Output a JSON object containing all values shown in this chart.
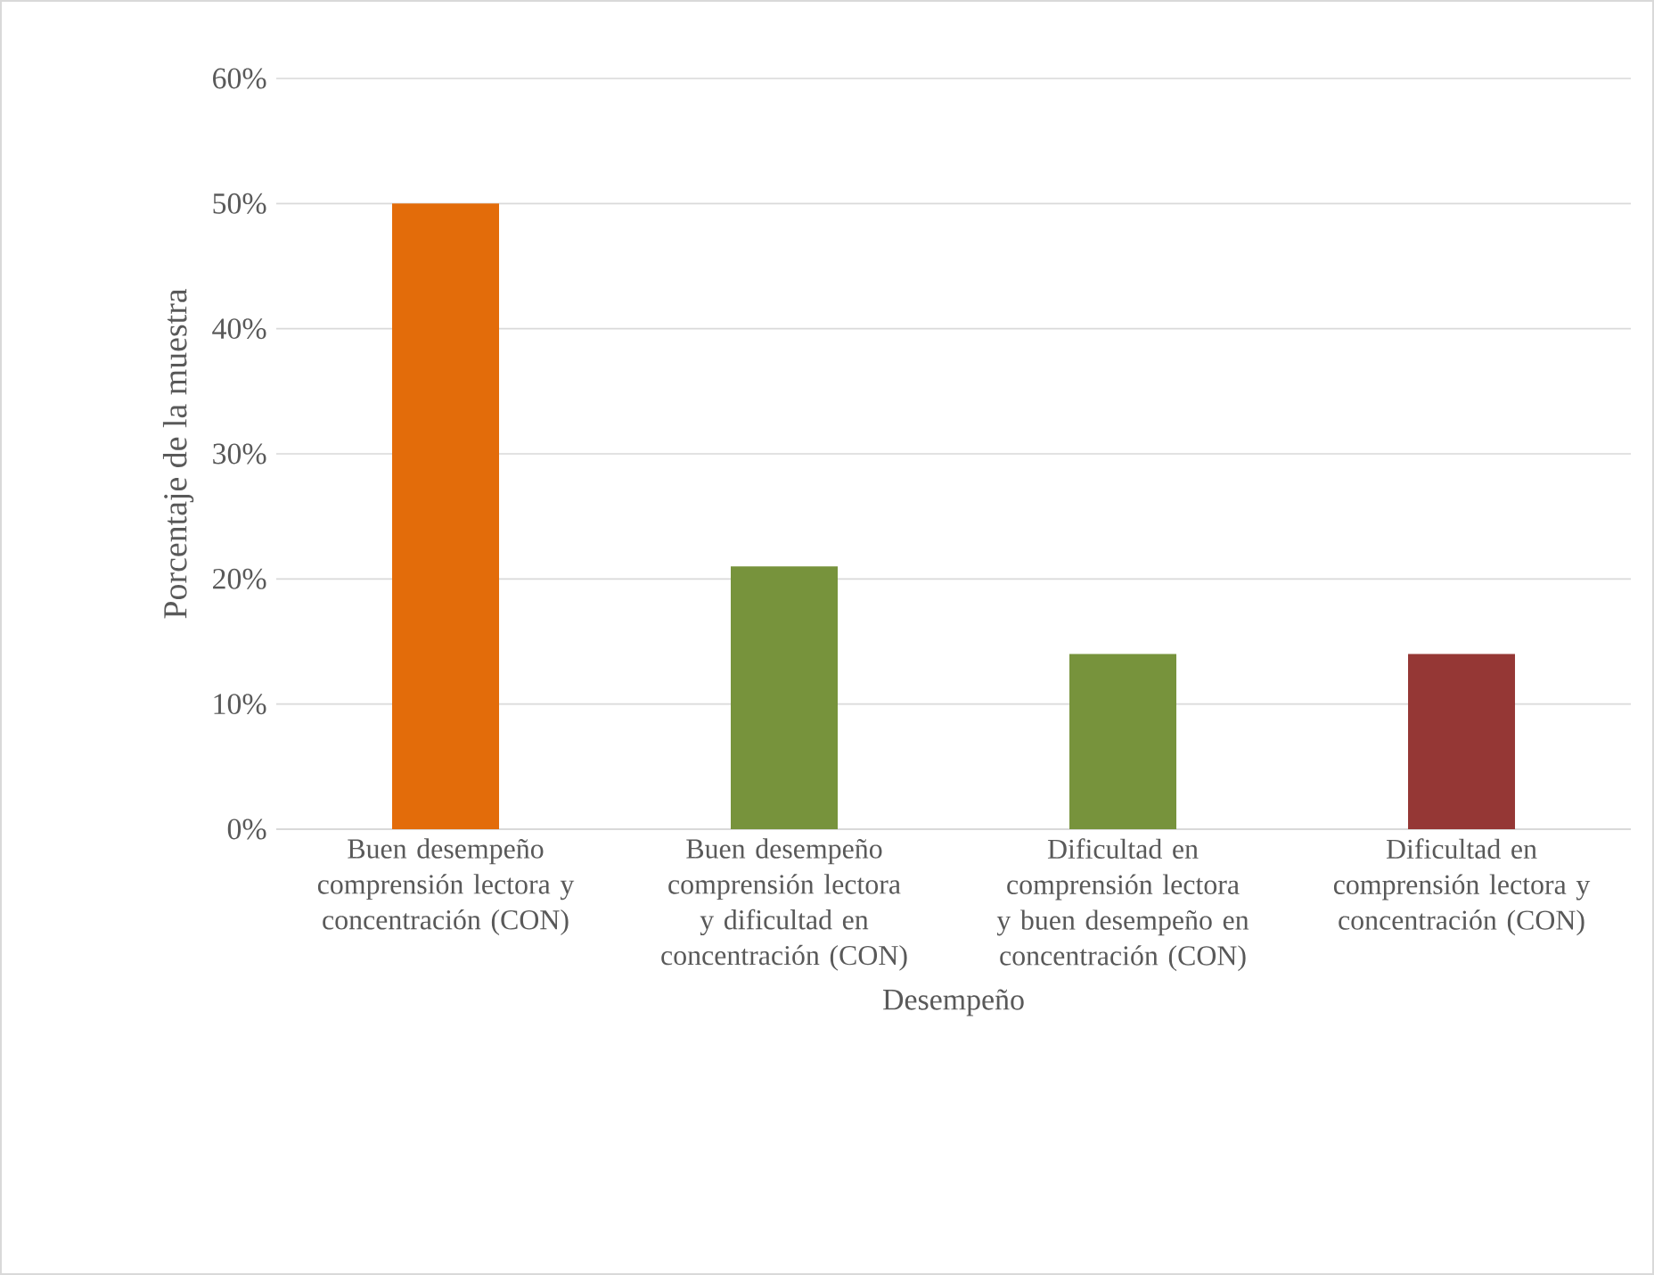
{
  "chart_data": {
    "type": "bar",
    "xlabel": "Desempeño",
    "ylabel": "Porcentaje de la muestra",
    "categories": [
      "Buen desempeño comprensión lectora y concentración (CON)",
      "Buen desempeño comprensión lectora y dificultad en concentración (CON)",
      "Dificultad en comprensión lectora y buen desempeño en concentración (CON)",
      "Dificultad en comprensión lectora y concentración (CON)"
    ],
    "values": [
      50,
      21,
      14,
      14
    ],
    "colors": [
      "#e36c0a",
      "#77933c",
      "#77933c",
      "#953735"
    ],
    "ylim": [
      0,
      60
    ],
    "yticks": [
      {
        "value": 0,
        "label": "0%"
      },
      {
        "value": 10,
        "label": "10%"
      },
      {
        "value": 20,
        "label": "20%"
      },
      {
        "value": 30,
        "label": "30%"
      },
      {
        "value": 40,
        "label": "40%"
      },
      {
        "value": 50,
        "label": "50%"
      },
      {
        "value": 60,
        "label": "60%"
      }
    ],
    "grid": "y"
  }
}
